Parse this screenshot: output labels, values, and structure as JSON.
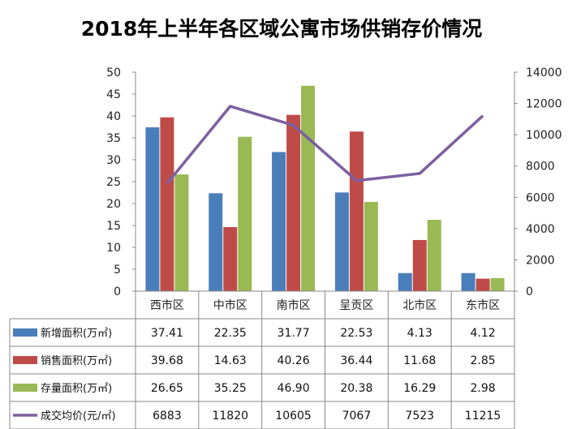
{
  "chart_data": {
    "type": "bar",
    "title": "2018年上半年各区域公寓市场供销存价情况",
    "categories": [
      "西市区",
      "中市区",
      "南市区",
      "呈贡区",
      "北市区",
      "东市区"
    ],
    "series": [
      {
        "name": "新增面积(万㎡)",
        "type": "bar",
        "axis": "left",
        "color": "#4a7ebb",
        "values": [
          37.41,
          22.35,
          31.77,
          22.53,
          4.13,
          4.12
        ],
        "labels": [
          "37.41",
          "22.35",
          "31.77",
          "22.53",
          "4.13",
          "4.12"
        ]
      },
      {
        "name": "销售面积(万㎡)",
        "type": "bar",
        "axis": "left",
        "color": "#be4b48",
        "values": [
          39.68,
          14.63,
          40.26,
          36.44,
          11.68,
          2.85
        ],
        "labels": [
          "39.68",
          "14.63",
          "40.26",
          "36.44",
          "11.68",
          "2.85"
        ]
      },
      {
        "name": "存量面积(万㎡)",
        "type": "bar",
        "axis": "left",
        "color": "#98b954",
        "values": [
          26.65,
          35.25,
          46.9,
          20.38,
          16.29,
          2.98
        ],
        "labels": [
          "26.65",
          "35.25",
          "46.90",
          "20.38",
          "16.29",
          "2.98"
        ]
      },
      {
        "name": "成交均价(元/㎡)",
        "type": "line",
        "axis": "right",
        "color": "#7d60a0",
        "values": [
          6883,
          11820,
          10605,
          7067,
          7523,
          11215
        ],
        "labels": [
          "6883",
          "11820",
          "10605",
          "7067",
          "7523",
          "11215"
        ]
      }
    ],
    "y_left": {
      "min": 0,
      "max": 50,
      "ticks": [
        "0",
        "5",
        "10",
        "15",
        "20",
        "25",
        "30",
        "35",
        "40",
        "45",
        "50"
      ]
    },
    "y_right": {
      "min": 0,
      "max": 14000,
      "ticks": [
        "0",
        "2000",
        "4000",
        "6000",
        "8000",
        "10000",
        "12000",
        "14000"
      ]
    },
    "grid": false,
    "legend": "data table below chart"
  }
}
